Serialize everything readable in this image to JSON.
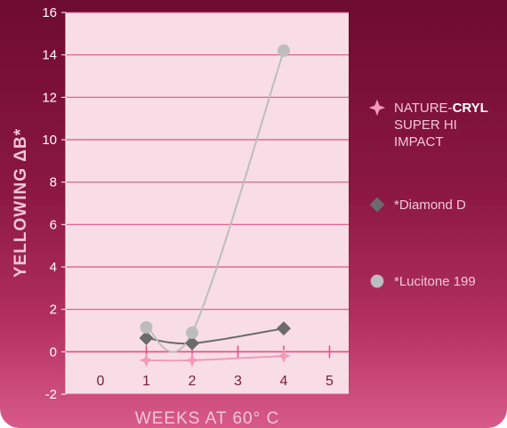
{
  "chart_data": {
    "type": "scatter",
    "xlabel": "WEEKS AT 60° C",
    "ylabel": "YELLOWING ΔB*",
    "xlim": [
      0,
      5
    ],
    "ylim": [
      -2,
      16
    ],
    "x_ticks": [
      "0",
      "1",
      "2",
      "3",
      "4",
      "5"
    ],
    "y_ticks": [
      "-2",
      "0",
      "2",
      "4",
      "6",
      "8",
      "10",
      "12",
      "14",
      "16"
    ],
    "grid": "horizontal",
    "legend_position": "right",
    "series": [
      {
        "name": "NATURE-CRYL SUPER HI IMPACT",
        "name_parts": [
          "NATURE-",
          "CRYL",
          "SUPER HI",
          "IMPACT"
        ],
        "marker": "four-point-star",
        "color": "#f29ab8",
        "points": [
          [
            1,
            -0.4
          ],
          [
            2,
            -0.4
          ],
          [
            4,
            -0.2
          ]
        ]
      },
      {
        "name": "*Diamond D",
        "marker": "diamond",
        "color": "#6b6b6b",
        "points": [
          [
            1,
            0.65
          ],
          [
            2,
            0.4
          ],
          [
            4,
            1.1
          ]
        ]
      },
      {
        "name": "*Lucitone 199",
        "marker": "circle",
        "color": "#bdbdbd",
        "points": [
          [
            1,
            1.15
          ],
          [
            2,
            0.9
          ],
          [
            4,
            14.2
          ]
        ]
      }
    ]
  },
  "colors": {
    "plot_bg": "#f9dde6",
    "grid": "#e0527f",
    "background_top": "#6e0b30",
    "background_bottom": "#d85a8a"
  }
}
